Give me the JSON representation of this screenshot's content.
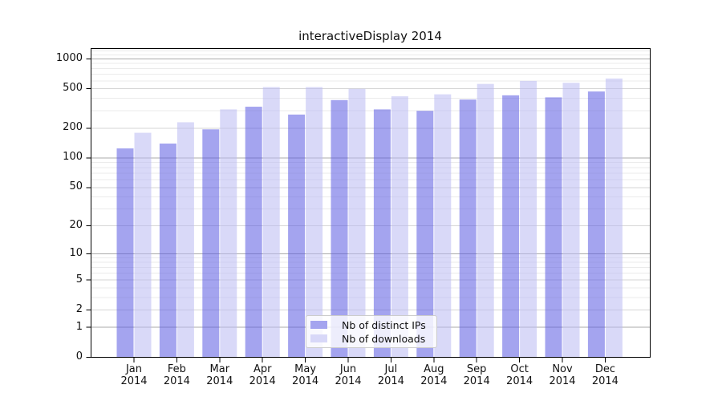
{
  "chart_data": {
    "type": "bar",
    "title": "interactiveDisplay 2014",
    "xlabel": "",
    "ylabel": "",
    "year_line": "2014",
    "categories": [
      "Jan",
      "Feb",
      "Mar",
      "Apr",
      "May",
      "Jun",
      "Jul",
      "Aug",
      "Sep",
      "Oct",
      "Nov",
      "Dec"
    ],
    "series": [
      {
        "name": "Nb of distinct IPs",
        "values": [
          125,
          140,
          195,
          330,
          275,
          385,
          310,
          300,
          390,
          430,
          410,
          470
        ],
        "bar_color": "rgba(90,90,226,0.55)",
        "swatch_color": "#a4a4ef"
      },
      {
        "name": "Nb of downloads",
        "values": [
          180,
          230,
          310,
          520,
          520,
          500,
          420,
          440,
          560,
          600,
          575,
          635
        ],
        "bar_color": "rgba(185,185,243,0.55)",
        "swatch_color": "#d8d8f8"
      }
    ],
    "y_ticks": [
      0,
      1,
      2,
      5,
      10,
      20,
      50,
      100,
      200,
      500,
      1000
    ],
    "scale": "log10(1+v)",
    "scale_max_log": 3.105,
    "ylim": [
      0,
      1273
    ],
    "grid": {
      "major_values": [
        1,
        10,
        100,
        1000
      ],
      "mid_values": [
        2,
        5,
        20,
        50,
        200,
        500
      ],
      "minor_values": [
        3,
        4,
        6,
        7,
        8,
        9,
        30,
        40,
        60,
        70,
        80,
        90,
        300,
        400,
        600,
        700,
        800,
        900,
        1100,
        1200
      ],
      "major_color": "#ababab",
      "mid_color": "#d6d6d6",
      "minor_color": "#ebebeb"
    },
    "legend_position": "lower center (inside axes)",
    "frame_color": "#000000",
    "tick_color": "#000000"
  }
}
